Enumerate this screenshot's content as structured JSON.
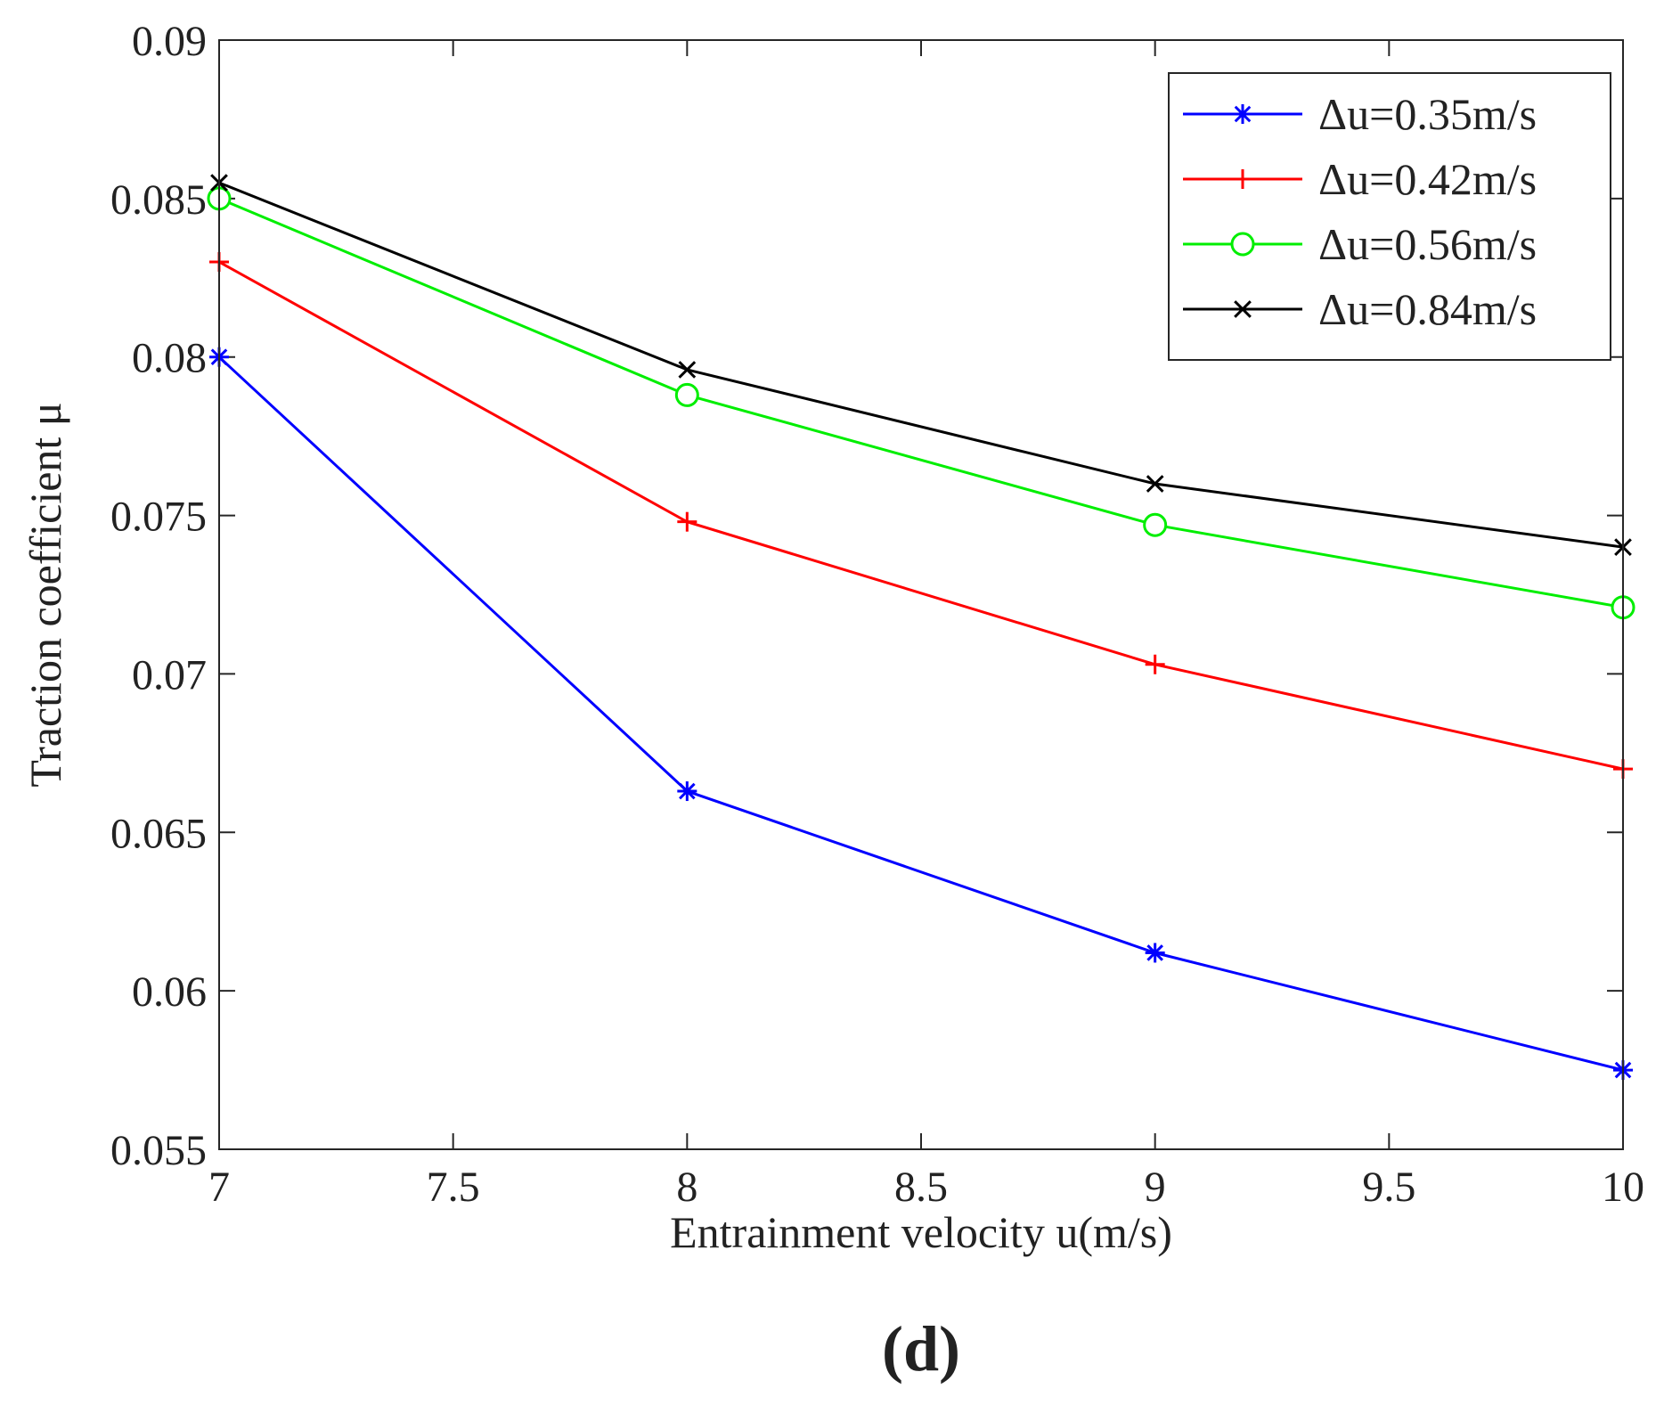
{
  "chart_data": {
    "type": "line",
    "title": "",
    "xlabel": "Entrainment velocity  u(m/s)",
    "ylabel": "Traction coefficient   μ",
    "panel_label": "(d)",
    "xlim": [
      7,
      10
    ],
    "ylim": [
      0.055,
      0.09
    ],
    "xticks": [
      7,
      7.5,
      8,
      8.5,
      9,
      9.5,
      10
    ],
    "xtick_labels": [
      "7",
      "7.5",
      "8",
      "8.5",
      "9",
      "9.5",
      "10"
    ],
    "yticks": [
      0.055,
      0.06,
      0.065,
      0.07,
      0.075,
      0.08,
      0.085,
      0.09
    ],
    "ytick_labels": [
      "0.055",
      "0.06",
      "0.065",
      "0.07",
      "0.075",
      "0.08",
      "0.085",
      "0.09"
    ],
    "grid": false,
    "legend_position": "top-right",
    "x": [
      7,
      8,
      9,
      10
    ],
    "series": [
      {
        "name": "Δu=0.35m/s",
        "color": "#0000ff",
        "marker": "asterisk",
        "values": [
          0.08,
          0.0663,
          0.0612,
          0.0575
        ]
      },
      {
        "name": "Δu=0.42m/s",
        "color": "#ff0000",
        "marker": "plus",
        "values": [
          0.083,
          0.0748,
          0.0703,
          0.067
        ]
      },
      {
        "name": "Δu=0.56m/s",
        "color": "#00ee00",
        "marker": "circle",
        "values": [
          0.085,
          0.0788,
          0.0747,
          0.0721
        ]
      },
      {
        "name": "Δu=0.84m/s",
        "color": "#000000",
        "marker": "cross",
        "values": [
          0.0855,
          0.0796,
          0.076,
          0.074
        ]
      }
    ]
  }
}
